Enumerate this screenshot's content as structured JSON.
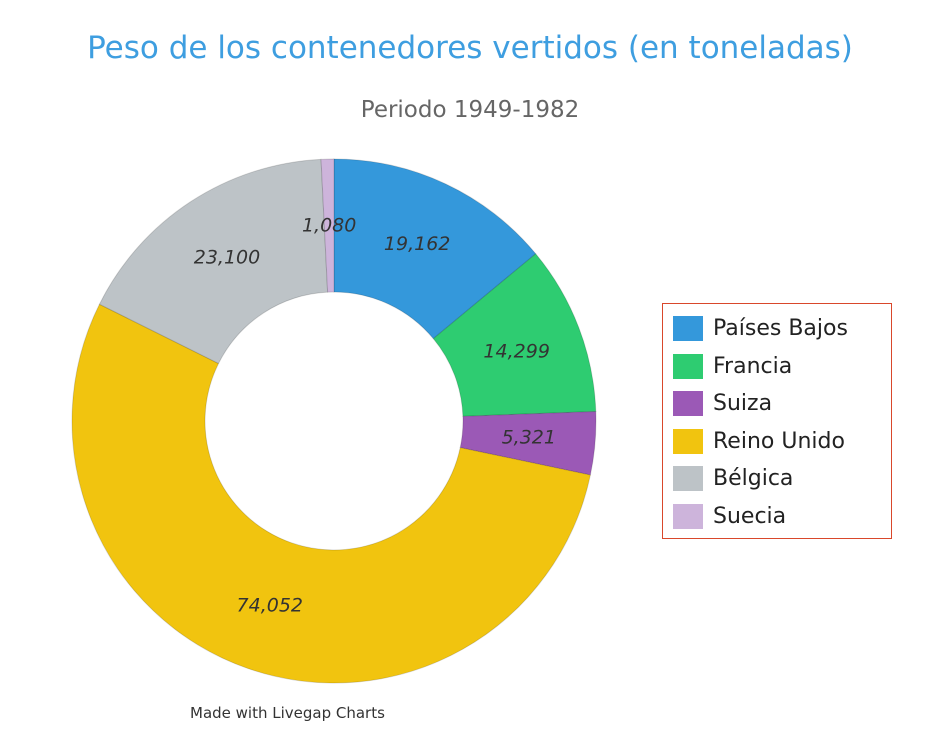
{
  "chart_data": {
    "type": "pie",
    "donut": true,
    "title": "Peso de los contenedores vertidos (en toneladas)",
    "subtitle": "Periodo 1949-1982",
    "categories": [
      "Países Bajos",
      "Francia",
      "Suiza",
      "Reino Unido",
      "Bélgica",
      "Suecia"
    ],
    "values": [
      19162,
      14299,
      5321,
      74052,
      23100,
      1080
    ],
    "labels": [
      "19,162",
      "14,299",
      "5,321",
      "74,052",
      "23,100",
      "1,080"
    ],
    "colors": [
      "#3498db",
      "#2ecc71",
      "#9b59b6",
      "#f1c40f",
      "#bdc3c7",
      "#cdb4db"
    ],
    "legend_position": "right"
  },
  "credit": "Made with Livegap Charts"
}
